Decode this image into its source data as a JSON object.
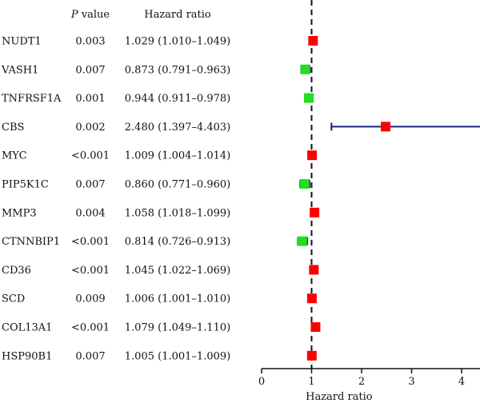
{
  "chart_data": {
    "type": "forest",
    "columns": {
      "pvalue_prefix": "P",
      "pvalue_suffix": " value",
      "hazard_ratio": "Hazard ratio"
    },
    "rows": [
      {
        "gene": "NUDT1",
        "pvalue": "0.003",
        "hr_text": "1.029 (1.010–1.049)",
        "hr": 1.029,
        "lower": 1.01,
        "upper": 1.049,
        "color": "#ff0000"
      },
      {
        "gene": "VASH1",
        "pvalue": "0.007",
        "hr_text": "0.873 (0.791–0.963)",
        "hr": 0.873,
        "lower": 0.791,
        "upper": 0.963,
        "color": "#22dd22"
      },
      {
        "gene": "TNFRSF1A",
        "pvalue": "0.001",
        "hr_text": "0.944 (0.911–0.978)",
        "hr": 0.944,
        "lower": 0.911,
        "upper": 0.978,
        "color": "#22dd22"
      },
      {
        "gene": "CBS",
        "pvalue": "0.002",
        "hr_text": "2.480 (1.397–4.403)",
        "hr": 2.48,
        "lower": 1.397,
        "upper": 4.403,
        "color": "#ff0000"
      },
      {
        "gene": "MYC",
        "pvalue": "<0.001",
        "hr_text": "1.009 (1.004–1.014)",
        "hr": 1.009,
        "lower": 1.004,
        "upper": 1.014,
        "color": "#ff0000"
      },
      {
        "gene": "PIP5K1C",
        "pvalue": "0.007",
        "hr_text": "0.860 (0.771–0.960)",
        "hr": 0.86,
        "lower": 0.771,
        "upper": 0.96,
        "color": "#22dd22"
      },
      {
        "gene": "MMP3",
        "pvalue": "0.004",
        "hr_text": "1.058 (1.018–1.099)",
        "hr": 1.058,
        "lower": 1.018,
        "upper": 1.099,
        "color": "#ff0000"
      },
      {
        "gene": "CTNNBIP1",
        "pvalue": "<0.001",
        "hr_text": "0.814 (0.726–0.913)",
        "hr": 0.814,
        "lower": 0.726,
        "upper": 0.913,
        "color": "#22dd22"
      },
      {
        "gene": "CD36",
        "pvalue": "<0.001",
        "hr_text": "1.045 (1.022–1.069)",
        "hr": 1.045,
        "lower": 1.022,
        "upper": 1.069,
        "color": "#ff0000"
      },
      {
        "gene": "SCD",
        "pvalue": "0.009",
        "hr_text": "1.006 (1.001–1.010)",
        "hr": 1.006,
        "lower": 1.001,
        "upper": 1.01,
        "color": "#ff0000"
      },
      {
        "gene": "COL13A1",
        "pvalue": "<0.001",
        "hr_text": "1.079 (1.049–1.110)",
        "hr": 1.079,
        "lower": 1.049,
        "upper": 1.11,
        "color": "#ff0000"
      },
      {
        "gene": "HSP90B1",
        "pvalue": "0.007",
        "hr_text": "1.005 (1.001–1.009)",
        "hr": 1.005,
        "lower": 1.001,
        "upper": 1.009,
        "color": "#ff0000"
      }
    ],
    "xaxis": {
      "label": "Hazard ratio",
      "range": [
        0,
        4.4
      ],
      "ticks": [
        0,
        1,
        2,
        3,
        4
      ],
      "reference_line": 1
    },
    "whisker_color": "#1a237e"
  }
}
